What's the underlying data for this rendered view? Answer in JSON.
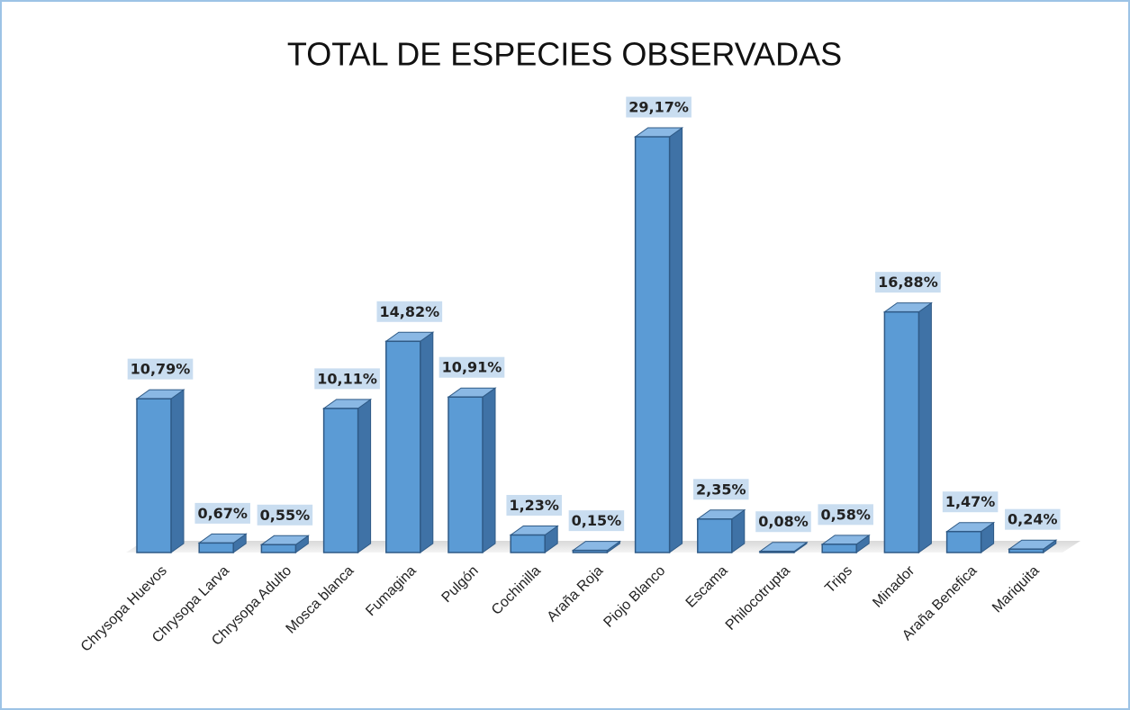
{
  "chart_data": {
    "type": "bar3d",
    "title": "TOTAL DE ESPECIES OBSERVADAS",
    "categories": [
      "Chrysopa Huevos",
      "Chrysopa Larva",
      "Chrysopa Adulto",
      "Mosca blanca",
      "Fumagina",
      "Pulgón",
      "Cochinilla",
      "Araña Roja",
      "Piojo Blanco",
      "Escama",
      "Philocotrupta",
      "Trips",
      "Minador",
      "Araña Benefica",
      "Mariquita"
    ],
    "values": [
      10.79,
      0.67,
      0.55,
      10.11,
      14.82,
      10.91,
      1.23,
      0.15,
      29.17,
      2.35,
      0.08,
      0.58,
      16.88,
      1.47,
      0.24
    ],
    "value_labels": [
      "10,79%",
      "0,67%",
      "0,55%",
      "10,11%",
      "14,82%",
      "10,91%",
      "1,23%",
      "0,15%",
      "29,17%",
      "2,35%",
      "0,08%",
      "0,58%",
      "16,88%",
      "1,47%",
      "0,24%"
    ],
    "color": "#5b9bd5"
  }
}
